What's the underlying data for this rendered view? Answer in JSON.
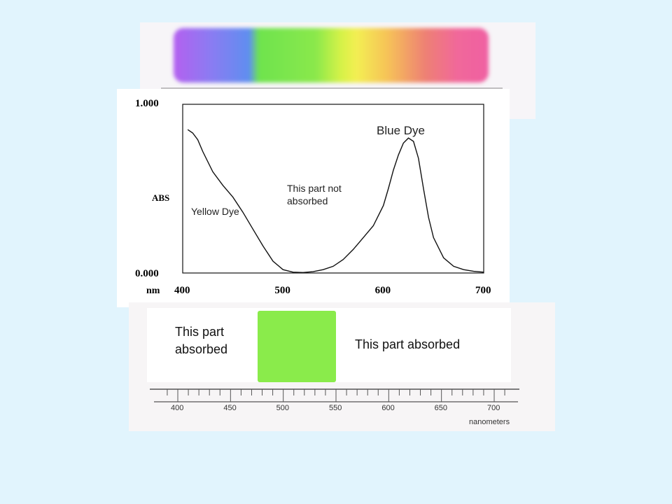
{
  "colors": {
    "background": "#e1f4fd",
    "curve": "#111111",
    "green_band": "#8aeb4b",
    "spectrum": [
      "#b460f0",
      "#8a7cf2",
      "#5f8ef0",
      "#6ee34e",
      "#8ae84c",
      "#d4f247",
      "#f3ef52",
      "#f6c258",
      "#ee8074",
      "#f1689a",
      "#f060a2"
    ]
  },
  "chart_data": {
    "type": "line",
    "ylabel": "ABS",
    "xlabel": "nm",
    "xlim": [
      400,
      700
    ],
    "ylim": [
      0.0,
      1.0
    ],
    "x_ticks": [
      "400",
      "500",
      "600",
      "700"
    ],
    "y_ticks": [
      "1.000",
      "0.000"
    ],
    "series": [
      {
        "x": [
          405,
          410,
          415,
          420,
          430,
          440,
          450,
          460,
          470,
          480,
          490,
          500,
          510,
          520,
          530,
          540,
          550,
          560,
          570,
          580,
          590,
          600,
          605,
          610,
          615,
          620,
          625,
          630,
          635,
          640,
          645,
          650,
          660,
          670,
          680,
          690,
          700
        ],
        "y": [
          0.85,
          0.83,
          0.79,
          0.72,
          0.6,
          0.52,
          0.45,
          0.36,
          0.26,
          0.16,
          0.07,
          0.02,
          0.005,
          0.003,
          0.008,
          0.02,
          0.04,
          0.08,
          0.14,
          0.21,
          0.28,
          0.4,
          0.5,
          0.61,
          0.7,
          0.77,
          0.8,
          0.78,
          0.68,
          0.5,
          0.33,
          0.21,
          0.09,
          0.04,
          0.02,
          0.01,
          0.005
        ]
      }
    ],
    "annotations": {
      "blue_dye": "Blue Dye",
      "yellow_dye": "Yellow Dye",
      "not_absorbed": "This part not absorbed"
    }
  },
  "bottom": {
    "left_label": "This part absorbed",
    "right_label": "This part absorbed",
    "scale_ticks": [
      "400",
      "450",
      "500",
      "550",
      "600",
      "650",
      "700"
    ],
    "scale_unit": "nanometers"
  }
}
